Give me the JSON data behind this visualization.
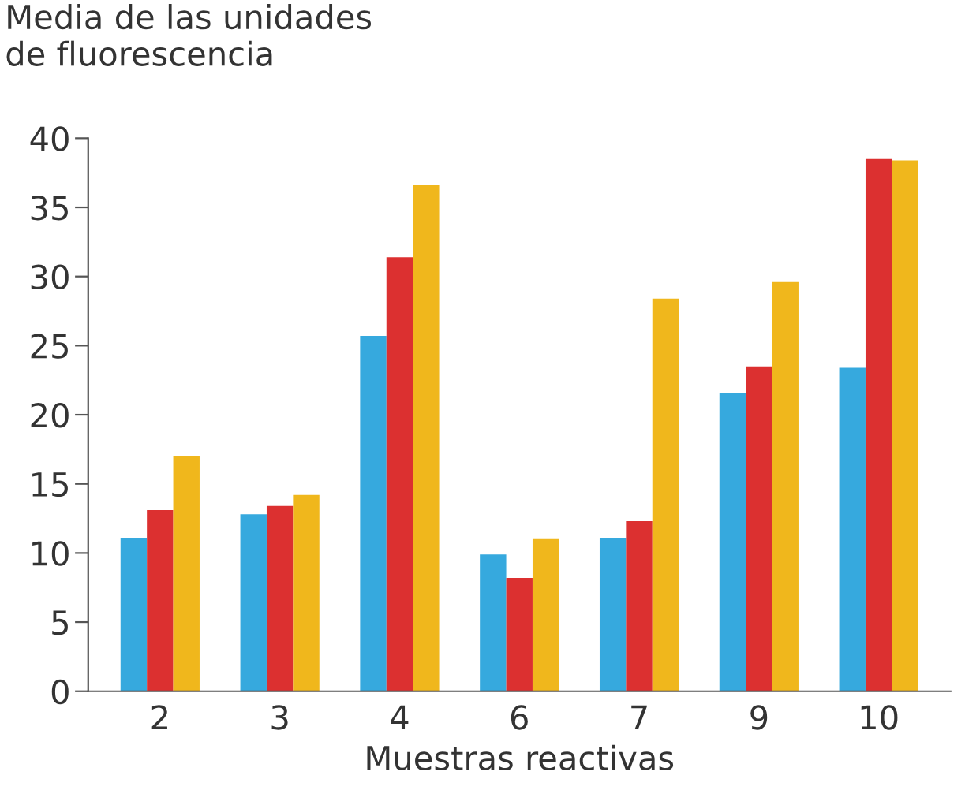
{
  "chart_data": {
    "type": "bar",
    "ylabel": "Media de las unidades\nde fluorescencia",
    "xlabel": "Muestras reactivas",
    "categories": [
      "2",
      "3",
      "4",
      "6",
      "7",
      "9",
      "10"
    ],
    "series": [
      {
        "color": "#36a9de",
        "values": [
          11.1,
          12.8,
          25.7,
          9.9,
          11.1,
          21.6,
          23.4
        ]
      },
      {
        "color": "#dc3030",
        "values": [
          13.1,
          13.4,
          31.4,
          8.2,
          12.3,
          23.5,
          38.5
        ]
      },
      {
        "color": "#f0b71c",
        "values": [
          17.0,
          14.2,
          36.6,
          11.0,
          28.4,
          29.6,
          38.4
        ]
      }
    ],
    "ylim": [
      0,
      40
    ],
    "yticks": [
      0,
      5,
      10,
      15,
      20,
      25,
      30,
      35,
      40
    ],
    "grid": false,
    "legend": false
  }
}
